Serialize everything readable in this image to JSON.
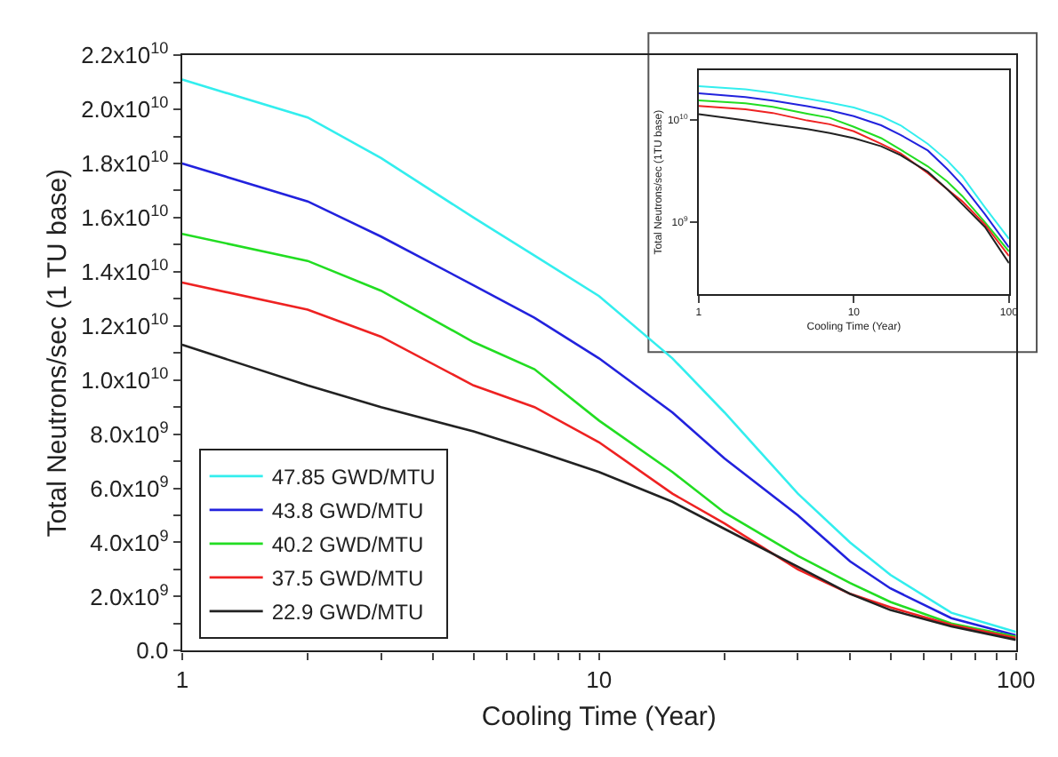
{
  "chart_data": [
    {
      "type": "line",
      "xlabel": "Cooling Time (Year)",
      "ylabel": "Total Neutrons/sec (1 TU base)",
      "log": "x",
      "grid": false,
      "legend": "bottom left",
      "marker": "none",
      "line_style": "solid",
      "x": [
        1,
        2,
        3,
        5,
        7,
        10,
        15,
        20,
        30,
        40,
        50,
        70,
        100
      ],
      "series": [
        {
          "name": "47.85 GWD/MTU",
          "color": "#33eeee",
          "values": [
            21100000000.0,
            19700000000.0,
            18200000000.0,
            16000000000.0,
            14600000000.0,
            13100000000.0,
            10800000000.0,
            8800000000.0,
            5800000000.0,
            4000000000.0,
            2800000000.0,
            1400000000.0,
            690000000.0
          ]
        },
        {
          "name": "43.8 GWD/MTU",
          "color": "#2222dd",
          "values": [
            18000000000.0,
            16600000000.0,
            15300000000.0,
            13500000000.0,
            12300000000.0,
            10800000000.0,
            8800000000.0,
            7100000000.0,
            5000000000.0,
            3300000000.0,
            2300000000.0,
            1200000000.0,
            570000000.0
          ]
        },
        {
          "name": "40.2 GWD/MTU",
          "color": "#22dd22",
          "values": [
            15400000000.0,
            14400000000.0,
            13300000000.0,
            11400000000.0,
            10400000000.0,
            8500000000.0,
            6600000000.0,
            5100000000.0,
            3500000000.0,
            2500000000.0,
            1800000000.0,
            1000000000.0,
            520000000.0
          ]
        },
        {
          "name": "37.5 GWD/MTU",
          "color": "#ee2222",
          "values": [
            13600000000.0,
            12600000000.0,
            11600000000.0,
            9800000000.0,
            9000000000.0,
            7700000000.0,
            5800000000.0,
            4700000000.0,
            3000000000.0,
            2100000000.0,
            1600000000.0,
            950000000.0,
            470000000.0
          ]
        },
        {
          "name": "22.9 GWD/MTU",
          "color": "#222222",
          "values": [
            11300000000.0,
            9800000000.0,
            9000000000.0,
            8100000000.0,
            7400000000.0,
            6600000000.0,
            5500000000.0,
            4500000000.0,
            3100000000.0,
            2100000000.0,
            1500000000.0,
            900000000.0,
            400000000.0
          ]
        }
      ],
      "xlim": [
        1,
        100
      ],
      "xticks": [
        1,
        {
          "value": 2,
          "label": null
        },
        {
          "value": 3,
          "label": null
        },
        {
          "value": 4,
          "label": null
        },
        {
          "value": 5,
          "label": null
        },
        {
          "value": 6,
          "label": null
        },
        {
          "value": 7,
          "label": null
        },
        {
          "value": 8,
          "label": null
        },
        {
          "value": 9,
          "label": null
        },
        10,
        {
          "value": 20,
          "label": null
        },
        {
          "value": 30,
          "label": null
        },
        {
          "value": 40,
          "label": null
        },
        {
          "value": 50,
          "label": null
        },
        {
          "value": 60,
          "label": null
        },
        {
          "value": 70,
          "label": null
        },
        {
          "value": 80,
          "label": null
        },
        {
          "value": 90,
          "label": null
        },
        100
      ],
      "ylim": [
        0,
        22000000000.0
      ],
      "yticks": [
        {
          "value": 0,
          "label": "0.0"
        },
        {
          "value": 1000000000.0,
          "label": null
        },
        {
          "value": 2000000000.0,
          "label": "2.0x10$^{9}$"
        },
        {
          "value": 3000000000.0,
          "label": null
        },
        {
          "value": 4000000000.0,
          "label": "4.0x10$^{9}$"
        },
        {
          "value": 5000000000.0,
          "label": null
        },
        {
          "value": 6000000000.0,
          "label": "6.0x10$^{9}$"
        },
        {
          "value": 7000000000.0,
          "label": null
        },
        {
          "value": 8000000000.0,
          "label": "8.0x10$^{9}$"
        },
        {
          "value": 9000000000.0,
          "label": null
        },
        {
          "value": 10000000000.0,
          "label": "1.0x10$^{10}$"
        },
        {
          "value": 11000000000.0,
          "label": null
        },
        {
          "value": 12000000000.0,
          "label": "1.2x10$^{10}$"
        },
        {
          "value": 13000000000.0,
          "label": null
        },
        {
          "value": 14000000000.0,
          "label": "1.4x10$^{10}$"
        },
        {
          "value": 15000000000.0,
          "label": null
        },
        {
          "value": 16000000000.0,
          "label": "1.6x10$^{10}$"
        },
        {
          "value": 17000000000.0,
          "label": null
        },
        {
          "value": 18000000000.0,
          "label": "1.8x10$^{10}$"
        },
        {
          "value": 19000000000.0,
          "label": null
        },
        {
          "value": 20000000000.0,
          "label": "2.0x10$^{10}$"
        },
        {
          "value": 21000000000.0,
          "label": null
        },
        {
          "value": 22000000000.0,
          "label": "2.2x10$^{10}$"
        }
      ]
    },
    {
      "type": "line",
      "xlabel": "Cooling Time (Year)",
      "ylabel": "Total Neutrons/sec (1TU base)",
      "log": "xy",
      "grid": false,
      "legend": false,
      "marker": "none",
      "line_style": "solid",
      "x": [
        1,
        2,
        3,
        5,
        7,
        10,
        15,
        20,
        30,
        40,
        50,
        70,
        100
      ],
      "series": [
        {
          "color": "#33eeee",
          "values": [
            21100000000.0,
            19700000000.0,
            18200000000.0,
            16000000000.0,
            14600000000.0,
            13100000000.0,
            10800000000.0,
            8800000000.0,
            5800000000.0,
            4000000000.0,
            2800000000.0,
            1400000000.0,
            690000000.0
          ]
        },
        {
          "color": "#2222dd",
          "values": [
            18000000000.0,
            16600000000.0,
            15300000000.0,
            13500000000.0,
            12300000000.0,
            10800000000.0,
            8800000000.0,
            7100000000.0,
            5000000000.0,
            3300000000.0,
            2300000000.0,
            1200000000.0,
            570000000.0
          ]
        },
        {
          "color": "#22dd22",
          "values": [
            15400000000.0,
            14400000000.0,
            13300000000.0,
            11400000000.0,
            10400000000.0,
            8500000000.0,
            6600000000.0,
            5100000000.0,
            3500000000.0,
            2500000000.0,
            1800000000.0,
            1000000000.0,
            520000000.0
          ]
        },
        {
          "color": "#ee2222",
          "values": [
            13600000000.0,
            12600000000.0,
            11600000000.0,
            9800000000.0,
            9000000000.0,
            7700000000.0,
            5800000000.0,
            4700000000.0,
            3000000000.0,
            2100000000.0,
            1600000000.0,
            950000000.0,
            470000000.0
          ]
        },
        {
          "color": "#222222",
          "values": [
            11300000000.0,
            9800000000.0,
            9000000000.0,
            8100000000.0,
            7400000000.0,
            6600000000.0,
            5500000000.0,
            4500000000.0,
            3100000000.0,
            2100000000.0,
            1500000000.0,
            900000000.0,
            400000000.0
          ]
        }
      ],
      "xlim": [
        1,
        100
      ],
      "xticks": [
        1,
        10,
        100
      ],
      "ylim": [
        200000000.0,
        30000000000.0
      ],
      "yticks": [
        {
          "value": 1000000000.0,
          "label": "10$^{9}$"
        },
        {
          "value": 10000000000.0,
          "label": "10$^{10}$"
        }
      ]
    }
  ]
}
